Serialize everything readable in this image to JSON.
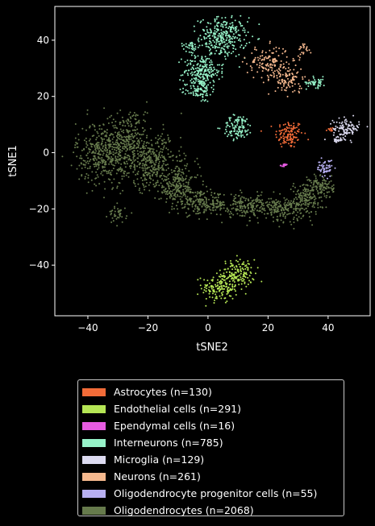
{
  "chart_data": {
    "type": "scatter",
    "title": "",
    "xlabel": "tSNE2",
    "ylabel": "tSNE1",
    "xlim": [
      -51,
      54
    ],
    "ylim": [
      -58,
      52
    ],
    "xticks": [
      -40,
      -20,
      0,
      20,
      40
    ],
    "yticks": [
      -40,
      -20,
      0,
      20,
      40
    ],
    "grid": false,
    "legend_placement": "below",
    "series": [
      {
        "name": "Astrocytes (n=130)",
        "color": "#f26b38",
        "count": 130,
        "clusters": [
          {
            "cx": 27,
            "cy": 6.5,
            "sx": 2.3,
            "sy": 2.5,
            "n": 120
          },
          {
            "cx": 40.5,
            "cy": 8,
            "sx": 0.7,
            "sy": 0.6,
            "n": 10
          }
        ]
      },
      {
        "name": "Endothelial cells (n=291)",
        "color": "#b5e655",
        "count": 291,
        "clusters": [
          {
            "cx": 4,
            "cy": -48,
            "sx": 3.0,
            "sy": 2.8,
            "n": 150
          },
          {
            "cx": 10,
            "cy": -43,
            "sx": 2.8,
            "sy": 2.5,
            "n": 141
          }
        ]
      },
      {
        "name": "Ependymal cells (n=16)",
        "color": "#e75ce2",
        "count": 16,
        "clusters": [
          {
            "cx": 25.5,
            "cy": -4.5,
            "sx": 0.6,
            "sy": 0.25,
            "n": 16
          }
        ]
      },
      {
        "name": "Interneurons (n=785)",
        "color": "#96f2c8",
        "count": 785,
        "clusters": [
          {
            "cx": 5,
            "cy": 41,
            "sx": 4.0,
            "sy": 3.5,
            "n": 300
          },
          {
            "cx": -2,
            "cy": 29,
            "sx": 3.0,
            "sy": 3.2,
            "n": 220
          },
          {
            "cx": -3,
            "cy": 22,
            "sx": 2.0,
            "sy": 2.0,
            "n": 80
          },
          {
            "cx": 10,
            "cy": 9,
            "sx": 2.5,
            "sy": 2.2,
            "n": 110
          },
          {
            "cx": 36,
            "cy": 25,
            "sx": 1.6,
            "sy": 1.0,
            "n": 45
          },
          {
            "cx": -6,
            "cy": 38,
            "sx": 1.5,
            "sy": 1.0,
            "n": 30
          }
        ]
      },
      {
        "name": "Microglia (n=129)",
        "color": "#dcdaf0",
        "count": 129,
        "clusters": [
          {
            "cx": 46,
            "cy": 8.5,
            "sx": 2.2,
            "sy": 1.8,
            "n": 110
          },
          {
            "cx": 43,
            "cy": 4.5,
            "sx": 0.7,
            "sy": 0.5,
            "n": 19
          }
        ]
      },
      {
        "name": "Neurons (n=261)",
        "color": "#f5b88e",
        "count": 261,
        "clusters": [
          {
            "cx": 20,
            "cy": 32,
            "sx": 3.5,
            "sy": 3.0,
            "n": 140
          },
          {
            "cx": 27,
            "cy": 26,
            "sx": 2.3,
            "sy": 2.8,
            "n": 100
          },
          {
            "cx": 32,
            "cy": 37,
            "sx": 1.2,
            "sy": 1.2,
            "n": 21
          }
        ]
      },
      {
        "name": "Oligodendrocyte progenitor cells (n=55)",
        "color": "#b8b0f2",
        "count": 55,
        "clusters": [
          {
            "cx": 39,
            "cy": -5.5,
            "sx": 1.3,
            "sy": 1.5,
            "n": 55
          }
        ]
      },
      {
        "name": "Oligodendrocytes (n=2068)",
        "color": "#667a4c",
        "count": 2068,
        "clusters": [
          {
            "cx": -35,
            "cy": 0,
            "sx": 4.5,
            "sy": 5.5,
            "n": 350
          },
          {
            "cx": -27,
            "cy": 2,
            "sx": 5.0,
            "sy": 5.5,
            "n": 320
          },
          {
            "cx": -18,
            "cy": -4,
            "sx": 4.5,
            "sy": 5.0,
            "n": 300
          },
          {
            "cx": -10,
            "cy": -12,
            "sx": 3.5,
            "sy": 3.5,
            "n": 220
          },
          {
            "cx": -2,
            "cy": -18,
            "sx": 4.0,
            "sy": 2.0,
            "n": 180
          },
          {
            "cx": 12,
            "cy": -19,
            "sx": 5.0,
            "sy": 2.0,
            "n": 200
          },
          {
            "cx": 25,
            "cy": -20,
            "sx": 3.5,
            "sy": 2.0,
            "n": 180
          },
          {
            "cx": 33,
            "cy": -16,
            "sx": 2.5,
            "sy": 3.0,
            "n": 150
          },
          {
            "cx": 38,
            "cy": -12,
            "sx": 2.0,
            "sy": 2.2,
            "n": 100
          },
          {
            "cx": -30,
            "cy": -22,
            "sx": 1.5,
            "sy": 1.5,
            "n": 40
          },
          {
            "cx": -25,
            "cy": 12,
            "sx": 2.0,
            "sy": 1.5,
            "n": 28
          }
        ]
      }
    ]
  }
}
